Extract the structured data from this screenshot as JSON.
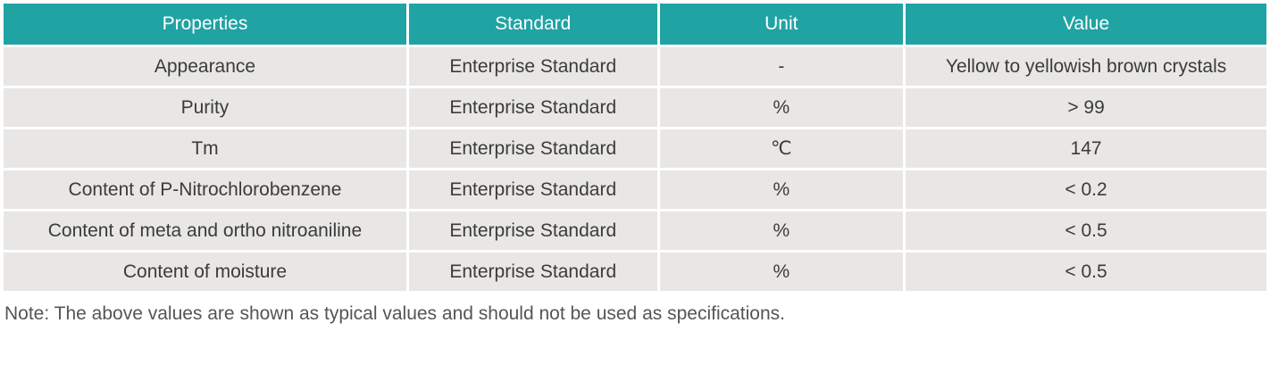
{
  "table": {
    "columns": [
      "Properties",
      "Standard",
      "Unit",
      "Value"
    ],
    "rows": [
      {
        "property": "Appearance",
        "standard": "Enterprise Standard",
        "unit": "-",
        "value": "Yellow to yellowish brown crystals"
      },
      {
        "property": "Purity",
        "standard": "Enterprise Standard",
        "unit": "%",
        "value": "> 99"
      },
      {
        "property": "Tm",
        "standard": "Enterprise Standard",
        "unit": "℃",
        "value": "147"
      },
      {
        "property": "Content of P-Nitrochlorobenzene",
        "standard": "Enterprise Standard",
        "unit": "%",
        "value": "< 0.2"
      },
      {
        "property": "Content of meta and ortho nitroaniline",
        "standard": "Enterprise Standard",
        "unit": "%",
        "value": "< 0.5"
      },
      {
        "property": "Content of moisture",
        "standard": "Enterprise Standard",
        "unit": "%",
        "value": "< 0.5"
      }
    ]
  },
  "note": "Note: The above values are shown as typical values and should not be used as specifications.",
  "colors": {
    "header_bg": "#20a3a3",
    "header_text": "#ffffff",
    "row_bg": "#e8e7e5",
    "cell_text": "#3b3b3b",
    "note_text": "#555555",
    "gutter": "#ffffff"
  }
}
